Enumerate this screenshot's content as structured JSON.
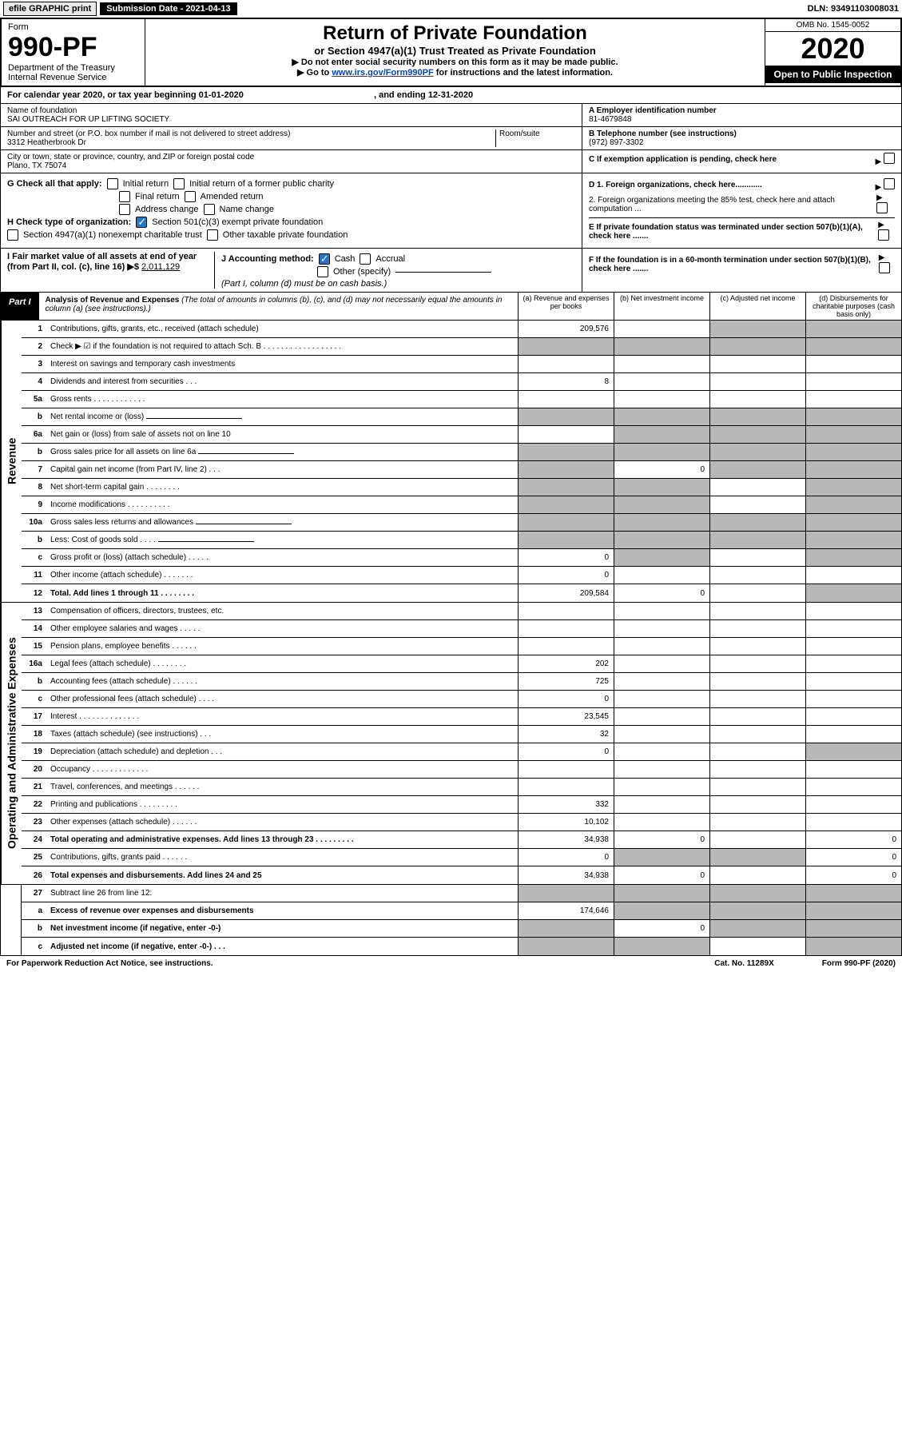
{
  "top": {
    "efile": "efile GRAPHIC print",
    "subdate_label": "Submission Date - 2021-04-13",
    "dln": "DLN: 93491103008031"
  },
  "header": {
    "form_label": "Form",
    "form_no": "990-PF",
    "dept": "Department of the Treasury",
    "irs": "Internal Revenue Service",
    "title": "Return of Private Foundation",
    "subtitle": "or Section 4947(a)(1) Trust Treated as Private Foundation",
    "note1": "▶ Do not enter social security numbers on this form as it may be made public.",
    "note2": "▶ Go to www.irs.gov/Form990PF for instructions and the latest information.",
    "omb": "OMB No. 1545-0052",
    "year": "2020",
    "inspection": "Open to Public Inspection"
  },
  "calyear": {
    "text": "For calendar year 2020, or tax year beginning 01-01-2020",
    "ending": ", and ending 12-31-2020"
  },
  "ident": {
    "name_label": "Name of foundation",
    "name": "SAI OUTREACH FOR UP LIFTING SOCIETY",
    "addr_label": "Number and street (or P.O. box number if mail is not delivered to street address)",
    "room_label": "Room/suite",
    "addr": "3312 Heatherbrook Dr",
    "city_label": "City or town, state or province, country, and ZIP or foreign postal code",
    "city": "Plano, TX  75074",
    "ein_label": "A Employer identification number",
    "ein": "81-4679848",
    "phone_label": "B Telephone number (see instructions)",
    "phone": "(972) 897-3302",
    "c_label": "C If exemption application is pending, check here"
  },
  "checks": {
    "g_label": "G Check all that apply:",
    "g_opts": [
      "Initial return",
      "Initial return of a former public charity",
      "Final return",
      "Amended return",
      "Address change",
      "Name change"
    ],
    "h_label": "H Check type of organization:",
    "h1": "Section 501(c)(3) exempt private foundation",
    "h2": "Section 4947(a)(1) nonexempt charitable trust",
    "h3": "Other taxable private foundation",
    "i_label": "I Fair market value of all assets at end of year (from Part II, col. (c), line 16) ▶$ ",
    "i_val": "2,011,129",
    "j_label": "J Accounting method:",
    "j_cash": "Cash",
    "j_accrual": "Accrual",
    "j_other": "Other (specify)",
    "j_note": "(Part I, column (d) must be on cash basis.)",
    "d1": "D 1. Foreign organizations, check here............",
    "d2": "2. Foreign organizations meeting the 85% test, check here and attach computation ...",
    "e": "E If private foundation status was terminated under section 507(b)(1)(A), check here .......",
    "f": "F If the foundation is in a 60-month termination under section 507(b)(1)(B), check here ......."
  },
  "part1": {
    "label": "Part I",
    "title": "Analysis of Revenue and Expenses",
    "note": "(The total of amounts in columns (b), (c), and (d) may not necessarily equal the amounts in column (a) (see instructions).)",
    "cols": {
      "a": "(a) Revenue and expenses per books",
      "b": "(b) Net investment income",
      "c": "(c) Adjusted net income",
      "d": "(d) Disbursements for charitable purposes (cash basis only)"
    }
  },
  "sections": {
    "revenue": "Revenue",
    "opex": "Operating and Administrative Expenses"
  },
  "rows": [
    {
      "n": "1",
      "d": "Contributions, gifts, grants, etc., received (attach schedule)",
      "a": "209,576",
      "greyB": false,
      "greyC": true,
      "greyD": true
    },
    {
      "n": "2",
      "d": "Check ▶ ☑ if the foundation is not required to attach Sch. B",
      "greyA": true,
      "greyB": true,
      "greyC": true,
      "greyD": true,
      "dots": ". . . . . . . . . . . . . . . . . ."
    },
    {
      "n": "3",
      "d": "Interest on savings and temporary cash investments"
    },
    {
      "n": "4",
      "d": "Dividends and interest from securities",
      "a": "8",
      "dots": ". . ."
    },
    {
      "n": "5a",
      "d": "Gross rents",
      "dots": ". . . . . . . . . . . ."
    },
    {
      "n": "b",
      "d": "Net rental income or (loss)",
      "greyA": true,
      "greyB": true,
      "greyC": true,
      "greyD": true,
      "input": true
    },
    {
      "n": "6a",
      "d": "Net gain or (loss) from sale of assets not on line 10",
      "greyB": true,
      "greyC": true,
      "greyD": true
    },
    {
      "n": "b",
      "d": "Gross sales price for all assets on line 6a",
      "greyA": true,
      "greyB": true,
      "greyC": true,
      "greyD": true,
      "input": true
    },
    {
      "n": "7",
      "d": "Capital gain net income (from Part IV, line 2)",
      "b": "0",
      "greyA": true,
      "greyC": true,
      "greyD": true,
      "dots": ". . ."
    },
    {
      "n": "8",
      "d": "Net short-term capital gain",
      "greyA": true,
      "greyB": true,
      "greyD": true,
      "dots": ". . . . . . . ."
    },
    {
      "n": "9",
      "d": "Income modifications",
      "greyA": true,
      "greyB": true,
      "greyD": true,
      "dots": ". . . . . . . . . ."
    },
    {
      "n": "10a",
      "d": "Gross sales less returns and allowances",
      "greyA": true,
      "greyB": true,
      "greyC": true,
      "greyD": true,
      "input": true
    },
    {
      "n": "b",
      "d": "Less: Cost of goods sold",
      "greyA": true,
      "greyB": true,
      "greyC": true,
      "greyD": true,
      "dots": ". . . .",
      "input": true
    },
    {
      "n": "c",
      "d": "Gross profit or (loss) (attach schedule)",
      "a": "0",
      "greyB": true,
      "greyD": true,
      "dots": ". . . . ."
    },
    {
      "n": "11",
      "d": "Other income (attach schedule)",
      "a": "0",
      "dots": ". . . . . . ."
    },
    {
      "n": "12",
      "d": "Total. Add lines 1 through 11",
      "a": "209,584",
      "b": "0",
      "greyD": true,
      "bold": true,
      "dots": ". . . . . . . ."
    }
  ],
  "oprows": [
    {
      "n": "13",
      "d": "Compensation of officers, directors, trustees, etc."
    },
    {
      "n": "14",
      "d": "Other employee salaries and wages",
      "dots": ". . . . ."
    },
    {
      "n": "15",
      "d": "Pension plans, employee benefits",
      "dots": ". . . . . ."
    },
    {
      "n": "16a",
      "d": "Legal fees (attach schedule)",
      "a": "202",
      "dots": ". . . . . . . ."
    },
    {
      "n": "b",
      "d": "Accounting fees (attach schedule)",
      "a": "725",
      "dots": ". . . . . ."
    },
    {
      "n": "c",
      "d": "Other professional fees (attach schedule)",
      "a": "0",
      "dots": ". . . ."
    },
    {
      "n": "17",
      "d": "Interest",
      "a": "23,545",
      "dots": ". . . . . . . . . . . . . ."
    },
    {
      "n": "18",
      "d": "Taxes (attach schedule) (see instructions)",
      "a": "32",
      "dots": ". . ."
    },
    {
      "n": "19",
      "d": "Depreciation (attach schedule) and depletion",
      "a": "0",
      "greyD": true,
      "dots": ". . ."
    },
    {
      "n": "20",
      "d": "Occupancy",
      "dots": ". . . . . . . . . . . . ."
    },
    {
      "n": "21",
      "d": "Travel, conferences, and meetings",
      "dots": ". . . . . ."
    },
    {
      "n": "22",
      "d": "Printing and publications",
      "a": "332",
      "dots": ". . . . . . . . ."
    },
    {
      "n": "23",
      "d": "Other expenses (attach schedule)",
      "a": "10,102",
      "dots": ". . . . . ."
    },
    {
      "n": "24",
      "d": "Total operating and administrative expenses. Add lines 13 through 23",
      "a": "34,938",
      "b": "0",
      "d4": "0",
      "bold": true,
      "dots": ". . . . . . . . ."
    },
    {
      "n": "25",
      "d": "Contributions, gifts, grants paid",
      "a": "0",
      "greyB": true,
      "greyC": true,
      "d4": "0",
      "dots": ". . . . . ."
    },
    {
      "n": "26",
      "d": "Total expenses and disbursements. Add lines 24 and 25",
      "a": "34,938",
      "b": "0",
      "d4": "0",
      "bold": true
    }
  ],
  "endrows": [
    {
      "n": "27",
      "d": "Subtract line 26 from line 12:",
      "greyA": true,
      "greyB": true,
      "greyC": true,
      "greyD": true
    },
    {
      "n": "a",
      "d": "Excess of revenue over expenses and disbursements",
      "a": "174,646",
      "greyB": true,
      "greyC": true,
      "greyD": true,
      "bold": true
    },
    {
      "n": "b",
      "d": "Net investment income (if negative, enter -0-)",
      "b": "0",
      "greyA": true,
      "greyC": true,
      "greyD": true,
      "bold": true
    },
    {
      "n": "c",
      "d": "Adjusted net income (if negative, enter -0-)",
      "greyA": true,
      "greyB": true,
      "greyD": true,
      "bold": true,
      "dots": ". . ."
    }
  ],
  "footer": {
    "left": "For Paperwork Reduction Act Notice, see instructions.",
    "mid": "Cat. No. 11289X",
    "right": "Form 990-PF (2020)"
  }
}
